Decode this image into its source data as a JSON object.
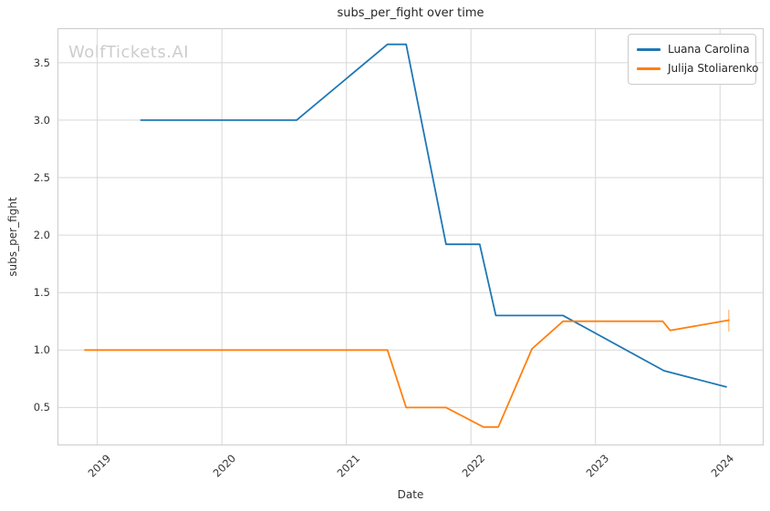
{
  "watermark": {
    "text": "WolfTickets.AI"
  },
  "chart_data": {
    "type": "line",
    "title": "subs_per_fight over time",
    "xlabel": "Date",
    "ylabel": "subs_per_fight",
    "x_tick_labels": [
      "2019",
      "2020",
      "2021",
      "2022",
      "2023",
      "2024"
    ],
    "x_tick_values": [
      2019,
      2020,
      2021,
      2022,
      2023,
      2024
    ],
    "y_tick_labels": [
      "0.5",
      "1.0",
      "1.5",
      "2.0",
      "2.5",
      "3.0",
      "3.5"
    ],
    "y_tick_values": [
      0.5,
      1.0,
      1.5,
      2.0,
      2.5,
      3.0,
      3.5
    ],
    "xlim": [
      2018.68,
      2024.35
    ],
    "ylim": [
      0.17,
      3.8
    ],
    "grid": true,
    "legend_position": "upper-right",
    "colors": {
      "grid": "#d7d7d7",
      "spine": "#cccccc",
      "text": "#333333",
      "watermark": "#cdcdcd"
    },
    "series": [
      {
        "name": "Luana Carolina",
        "color": "#1f77b4",
        "x": [
          2019.35,
          2020.6,
          2021.33,
          2021.48,
          2021.8,
          2022.07,
          2022.2,
          2022.74,
          2023.55,
          2024.05
        ],
        "y": [
          3.0,
          3.0,
          3.66,
          3.66,
          1.92,
          1.92,
          1.3,
          1.3,
          0.82,
          0.68
        ]
      },
      {
        "name": "Julija Stoliarenko",
        "color": "#ff7f0e",
        "x": [
          2018.9,
          2021.33,
          2021.48,
          2021.8,
          2022.1,
          2022.22,
          2022.49,
          2022.74,
          2023.54,
          2023.6,
          2024.07
        ],
        "y": [
          1.0,
          1.0,
          0.5,
          0.5,
          0.33,
          0.33,
          1.01,
          1.25,
          1.25,
          1.17,
          1.26
        ],
        "end_error_bar": {
          "x": 2024.07,
          "y_low": 1.16,
          "y_high": 1.35
        }
      }
    ]
  }
}
